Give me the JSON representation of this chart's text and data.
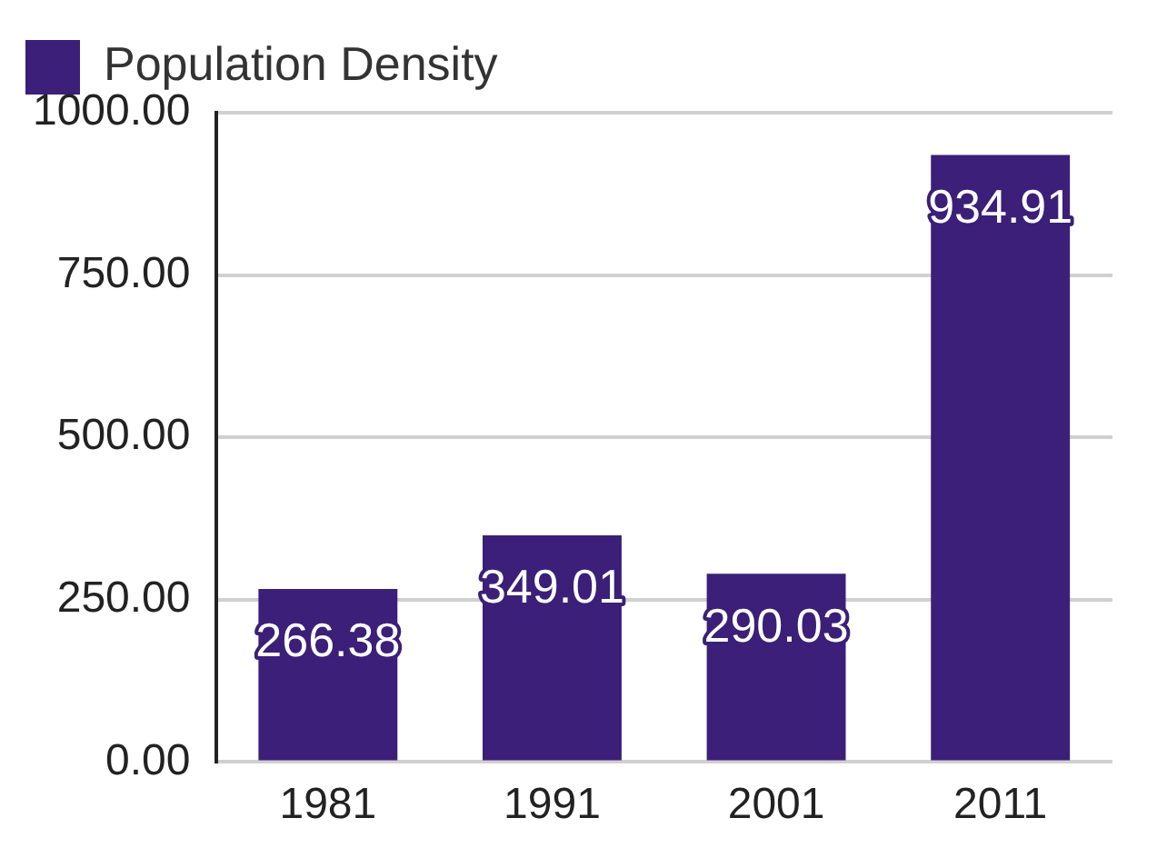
{
  "chart_data": {
    "type": "bar",
    "categories": [
      "1981",
      "1991",
      "2001",
      "2011"
    ],
    "series": [
      {
        "name": "Population Density",
        "color": "#3b1f78",
        "values": [
          266.38,
          349.01,
          290.03,
          934.91
        ]
      }
    ],
    "ylim": [
      0,
      1000
    ],
    "yticks": [
      {
        "value": 0,
        "label": "0.00"
      },
      {
        "value": 250,
        "label": "250.00"
      },
      {
        "value": 500,
        "label": "500.00"
      },
      {
        "value": 750,
        "label": "750.00"
      },
      {
        "value": 1000,
        "label": "1000.00"
      }
    ],
    "grid": "y",
    "legend": "top left",
    "data_labels": true
  }
}
